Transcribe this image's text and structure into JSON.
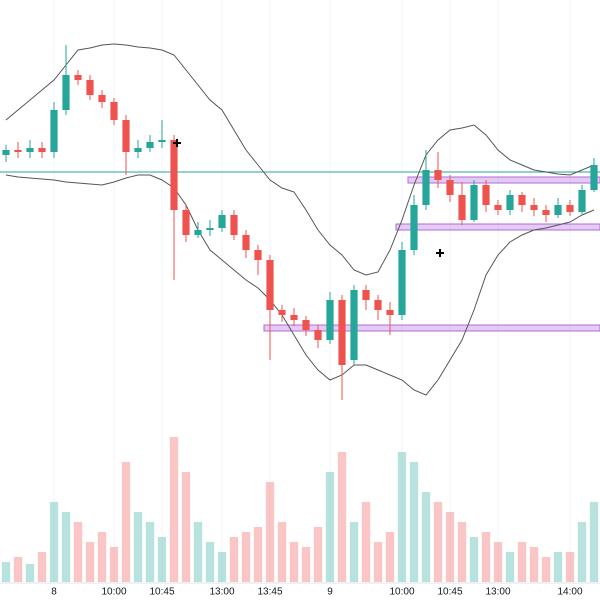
{
  "chart_data": {
    "type": "candlestick",
    "categories": [
      null,
      null,
      null,
      null,
      "8",
      null,
      null,
      null,
      null,
      "10:00",
      null,
      null,
      null,
      "10:45",
      null,
      null,
      null,
      null,
      "13:00",
      null,
      null,
      null,
      "13:45",
      null,
      null,
      null,
      null,
      "9",
      null,
      null,
      null,
      null,
      null,
      "10:00",
      null,
      null,
      null,
      "10:45",
      null,
      null,
      null,
      "13:00",
      null,
      null,
      null,
      null,
      null,
      "14:00",
      null,
      null
    ],
    "open": [
      265,
      270,
      268,
      272,
      268,
      310,
      345,
      340,
      325,
      318,
      300,
      268,
      272,
      278,
      280,
      210,
      185,
      190,
      192,
      205,
      185,
      170,
      160,
      110,
      105,
      100,
      90,
      80,
      120,
      60,
      130,
      120,
      110,
      105,
      170,
      215,
      250,
      240,
      225,
      200,
      235,
      215,
      210,
      225,
      215,
      210,
      205,
      215,
      208,
      230
    ],
    "high": [
      275,
      278,
      280,
      278,
      318,
      375,
      350,
      345,
      330,
      322,
      305,
      280,
      285,
      300,
      285,
      215,
      198,
      200,
      210,
      210,
      190,
      175,
      165,
      115,
      112,
      104,
      95,
      128,
      125,
      135,
      135,
      125,
      118,
      178,
      225,
      270,
      268,
      245,
      238,
      240,
      240,
      220,
      230,
      228,
      222,
      215,
      222,
      220,
      235,
      262
    ],
    "low": [
      258,
      262,
      262,
      262,
      262,
      305,
      335,
      320,
      312,
      295,
      245,
      262,
      268,
      272,
      140,
      178,
      182,
      184,
      188,
      180,
      162,
      145,
      60,
      98,
      94,
      84,
      72,
      76,
      20,
      55,
      110,
      100,
      85,
      100,
      165,
      210,
      232,
      218,
      195,
      198,
      208,
      205,
      205,
      208,
      204,
      198,
      202,
      204,
      206,
      228
    ],
    "close": [
      270,
      268,
      272,
      268,
      310,
      345,
      340,
      325,
      318,
      300,
      268,
      272,
      278,
      280,
      210,
      185,
      190,
      192,
      205,
      185,
      170,
      160,
      110,
      105,
      100,
      90,
      80,
      120,
      55,
      130,
      120,
      110,
      105,
      170,
      215,
      250,
      240,
      225,
      200,
      235,
      215,
      210,
      225,
      215,
      210,
      205,
      215,
      208,
      230,
      255
    ],
    "volume": [
      20,
      25,
      18,
      30,
      80,
      70,
      60,
      40,
      50,
      35,
      120,
      70,
      60,
      45,
      145,
      110,
      60,
      40,
      30,
      45,
      50,
      55,
      100,
      60,
      40,
      35,
      55,
      110,
      130,
      60,
      80,
      40,
      50,
      130,
      120,
      90,
      80,
      70,
      60,
      45,
      50,
      40,
      30,
      40,
      35,
      25,
      30,
      30,
      60,
      80
    ],
    "upper_band": [
      300,
      310,
      320,
      330,
      340,
      355,
      370,
      372,
      375,
      376,
      375,
      373,
      372,
      370,
      365,
      350,
      335,
      320,
      310,
      290,
      270,
      255,
      240,
      232,
      228,
      210,
      190,
      175,
      165,
      150,
      145,
      148,
      170,
      200,
      235,
      265,
      280,
      290,
      292,
      295,
      285,
      270,
      260,
      255,
      250,
      248,
      246,
      245,
      250,
      255
    ],
    "lower_band": [
      245,
      243,
      242,
      241,
      240,
      238,
      237,
      236,
      235,
      238,
      242,
      245,
      245,
      240,
      232,
      215,
      190,
      170,
      160,
      150,
      140,
      132,
      120,
      105,
      85,
      65,
      50,
      40,
      45,
      55,
      55,
      50,
      45,
      40,
      30,
      25,
      40,
      60,
      80,
      110,
      145,
      165,
      178,
      185,
      190,
      192,
      195,
      198,
      205,
      210
    ],
    "levels": [
      {
        "value": 240,
        "start": 34
      },
      {
        "value": 193,
        "start": 33
      },
      {
        "value": 92,
        "start": 22
      }
    ],
    "reference_line": 248,
    "ylim": [
      0,
      400
    ],
    "volume_ylim": [
      0,
      150
    ],
    "up_color": "#26a69a",
    "down_color": "#ef5350",
    "band_color": "#555555",
    "level_color": "#b36ad9",
    "grid": true
  }
}
